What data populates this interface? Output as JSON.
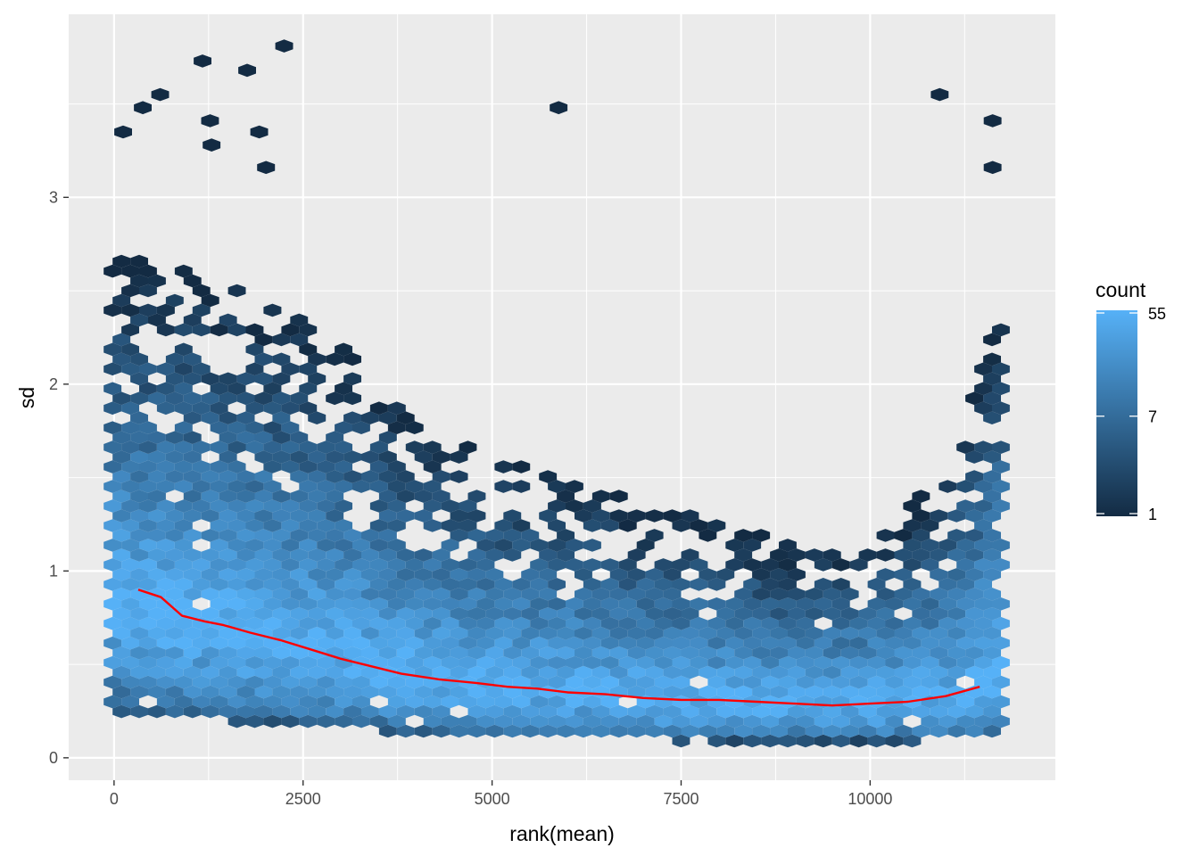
{
  "chart_data": {
    "type": "hexbin",
    "xlabel": "rank(mean)",
    "ylabel": "sd",
    "xlim": [
      -600,
      12450
    ],
    "ylim": [
      -0.12,
      3.98
    ],
    "x_ticks": [
      0,
      2500,
      5000,
      7500,
      10000
    ],
    "x_tick_labels": [
      "0",
      "2500",
      "5000",
      "7500",
      "10000"
    ],
    "y_ticks": [
      0,
      1,
      2,
      3
    ],
    "y_tick_labels": [
      "0",
      "1",
      "2",
      "3"
    ],
    "legend": {
      "title": "count",
      "scale": "log",
      "labels": [
        "55",
        "7",
        "1"
      ],
      "values": [
        55,
        7,
        1
      ],
      "color_low": "#132B43",
      "color_high": "#56B1F7",
      "position": "right"
    },
    "density_profile": {
      "x": [
        0,
        1000,
        2000,
        3000,
        4000,
        5000,
        6000,
        7000,
        8000,
        9000,
        10000,
        11000,
        11800
      ],
      "median_sd": [
        0.88,
        0.74,
        0.66,
        0.55,
        0.45,
        0.4,
        0.36,
        0.33,
        0.31,
        0.29,
        0.29,
        0.33,
        0.4
      ],
      "upper_sd": [
        2.7,
        2.6,
        2.5,
        2.2,
        1.8,
        1.6,
        1.5,
        1.4,
        1.25,
        1.15,
        1.2,
        1.5,
        2.6
      ]
    },
    "outliers": [
      {
        "x": 120,
        "y": 3.35
      },
      {
        "x": 380,
        "y": 3.48
      },
      {
        "x": 610,
        "y": 3.55
      },
      {
        "x": 1170,
        "y": 3.73
      },
      {
        "x": 1270,
        "y": 3.41
      },
      {
        "x": 1290,
        "y": 3.28
      },
      {
        "x": 1760,
        "y": 3.68
      },
      {
        "x": 1920,
        "y": 3.35
      },
      {
        "x": 2010,
        "y": 3.16
      },
      {
        "x": 2250,
        "y": 3.81
      },
      {
        "x": 5880,
        "y": 3.48
      },
      {
        "x": 10920,
        "y": 3.55
      },
      {
        "x": 11620,
        "y": 3.41
      },
      {
        "x": 11620,
        "y": 3.16
      }
    ],
    "series": [
      {
        "type": "line",
        "color": "#FF0000",
        "x": [
          320,
          620,
          900,
          1200,
          1450,
          1800,
          2200,
          2600,
          3000,
          3400,
          3800,
          4300,
          4800,
          5200,
          5600,
          6000,
          6500,
          7000,
          7500,
          8000,
          8500,
          9000,
          9500,
          10000,
          10500,
          11000,
          11450
        ],
        "y": [
          0.9,
          0.86,
          0.76,
          0.73,
          0.71,
          0.67,
          0.63,
          0.58,
          0.53,
          0.49,
          0.45,
          0.42,
          0.4,
          0.38,
          0.37,
          0.35,
          0.34,
          0.32,
          0.31,
          0.31,
          0.3,
          0.29,
          0.28,
          0.29,
          0.3,
          0.33,
          0.38
        ]
      }
    ]
  }
}
